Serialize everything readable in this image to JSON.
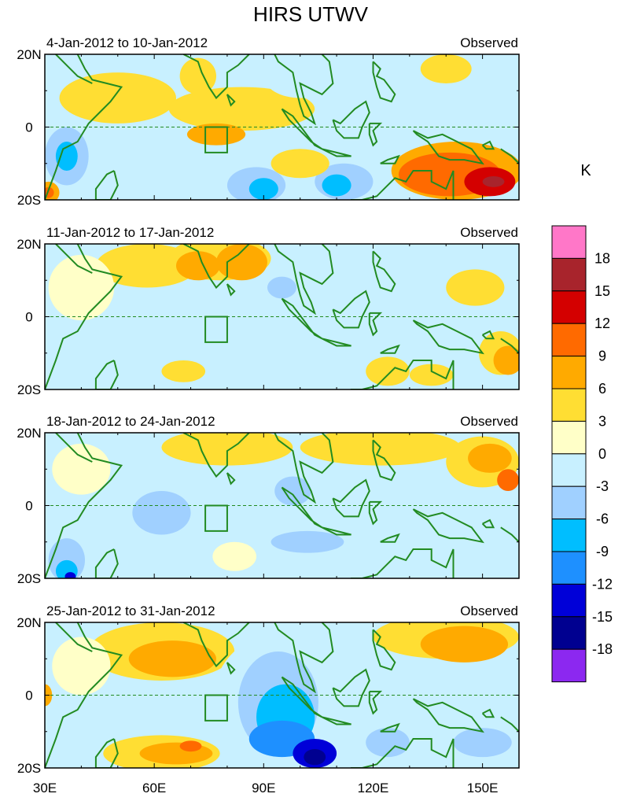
{
  "chart_data": {
    "type": "heatmap",
    "title": "HIRS UTWV",
    "units": "K",
    "x_ticks": [
      "30E",
      "60E",
      "90E",
      "120E",
      "150E"
    ],
    "x_tick_values": [
      30,
      60,
      90,
      120,
      150
    ],
    "y_ticks": [
      "20N",
      "0",
      "20S"
    ],
    "y_tick_values": [
      20,
      0,
      -20
    ],
    "xlim": [
      30,
      160
    ],
    "ylim": [
      -20,
      20
    ],
    "box_region": {
      "lon": [
        74,
        80
      ],
      "lat": [
        -7,
        0
      ]
    },
    "colorbar": {
      "levels": [
        "18",
        "15",
        "12",
        "9",
        "6",
        "3",
        "0",
        "-3",
        "-6",
        "-9",
        "-12",
        "-15",
        "-18"
      ],
      "colors": [
        "#ff77c8",
        "#a8242c",
        "#d40000",
        "#ff6a00",
        "#ffaa00",
        "#ffde33",
        "#ffffc8",
        "#c8f0ff",
        "#a0d0ff",
        "#00beff",
        "#1e90ff",
        "#0000d8",
        "#000090",
        "#8c28f0"
      ]
    },
    "panels": [
      {
        "period": "4-Jan-2012 to 10-Jan-2012",
        "label": "Observed",
        "blobs": [
          {
            "lon": 50,
            "lat": 8,
            "rx": 16,
            "ry": 7,
            "v": 3
          },
          {
            "lon": 84,
            "lat": 5,
            "rx": 20,
            "ry": 6,
            "v": 3
          },
          {
            "lon": 77,
            "lat": -2,
            "rx": 8,
            "ry": 3,
            "v": 6
          },
          {
            "lon": 72,
            "lat": 14,
            "rx": 5,
            "ry": 5,
            "v": 3
          },
          {
            "lon": 100,
            "lat": 14,
            "rx": 10,
            "ry": 6,
            "v": -3
          },
          {
            "lon": 125,
            "lat": 10,
            "rx": 10,
            "ry": 8,
            "v": -3
          },
          {
            "lon": 147,
            "lat": 8,
            "rx": 8,
            "ry": 6,
            "v": -3
          },
          {
            "lon": 140,
            "lat": 16,
            "rx": 7,
            "ry": 4,
            "v": 3
          },
          {
            "lon": 36,
            "lat": -8,
            "rx": 6,
            "ry": 8,
            "v": -6
          },
          {
            "lon": 36,
            "lat": -8,
            "rx": 3,
            "ry": 4,
            "v": -9
          },
          {
            "lon": 31,
            "lat": -18,
            "rx": 3,
            "ry": 3,
            "v": 6
          },
          {
            "lon": 31,
            "lat": -18,
            "rx": 1.5,
            "ry": 1.5,
            "v": 9
          },
          {
            "lon": 88,
            "lat": -16,
            "rx": 8,
            "ry": 5,
            "v": -6
          },
          {
            "lon": 90,
            "lat": -17,
            "rx": 4,
            "ry": 3,
            "v": -9
          },
          {
            "lon": 112,
            "lat": -15,
            "rx": 8,
            "ry": 5,
            "v": -6
          },
          {
            "lon": 110,
            "lat": -16,
            "rx": 4,
            "ry": 3,
            "v": -9
          },
          {
            "lon": 100,
            "lat": -10,
            "rx": 8,
            "ry": 4,
            "v": 3
          },
          {
            "lon": 143,
            "lat": -12,
            "rx": 18,
            "ry": 8,
            "v": 6
          },
          {
            "lon": 141,
            "lat": -13,
            "rx": 14,
            "ry": 6,
            "v": 9
          },
          {
            "lon": 152,
            "lat": -15,
            "rx": 7,
            "ry": 4,
            "v": 12
          },
          {
            "lon": 153,
            "lat": -15,
            "rx": 3,
            "ry": 1.5,
            "v": 15
          }
        ]
      },
      {
        "period": "11-Jan-2012 to 17-Jan-2012",
        "label": "Observed",
        "blobs": [
          {
            "lon": 58,
            "lat": 14,
            "rx": 14,
            "ry": 6,
            "v": 3
          },
          {
            "lon": 78,
            "lat": 16,
            "rx": 14,
            "ry": 6,
            "v": 3
          },
          {
            "lon": 72,
            "lat": 14,
            "rx": 6,
            "ry": 4,
            "v": 6
          },
          {
            "lon": 84,
            "lat": 15,
            "rx": 7,
            "ry": 5,
            "v": 6
          },
          {
            "lon": 40,
            "lat": 8,
            "rx": 9,
            "ry": 9,
            "v": 0
          },
          {
            "lon": 62,
            "lat": 0,
            "rx": 14,
            "ry": 6,
            "v": -3
          },
          {
            "lon": 92,
            "lat": 6,
            "rx": 6,
            "ry": 4,
            "v": -3
          },
          {
            "lon": 95,
            "lat": 8,
            "rx": 4,
            "ry": 3,
            "v": -6
          },
          {
            "lon": 105,
            "lat": 14,
            "rx": 6,
            "ry": 4,
            "v": -3
          },
          {
            "lon": 130,
            "lat": 8,
            "rx": 9,
            "ry": 6,
            "v": -3
          },
          {
            "lon": 148,
            "lat": 8,
            "rx": 8,
            "ry": 5,
            "v": 3
          },
          {
            "lon": 112,
            "lat": -8,
            "rx": 6,
            "ry": 4,
            "v": -3
          },
          {
            "lon": 68,
            "lat": -15,
            "rx": 6,
            "ry": 3,
            "v": 3
          },
          {
            "lon": 124,
            "lat": -15,
            "rx": 6,
            "ry": 4,
            "v": 3
          },
          {
            "lon": 136,
            "lat": -16,
            "rx": 6,
            "ry": 3,
            "v": 3
          },
          {
            "lon": 155,
            "lat": -10,
            "rx": 6,
            "ry": 6,
            "v": 3
          },
          {
            "lon": 157,
            "lat": -12,
            "rx": 4,
            "ry": 4,
            "v": 6
          },
          {
            "lon": 90,
            "lat": -14,
            "rx": 8,
            "ry": 3,
            "v": -3
          }
        ]
      },
      {
        "period": "18-Jan-2012 to 24-Jan-2012",
        "label": "Observed",
        "blobs": [
          {
            "lon": 80,
            "lat": 16,
            "rx": 18,
            "ry": 5,
            "v": 3
          },
          {
            "lon": 122,
            "lat": 16,
            "rx": 22,
            "ry": 5,
            "v": 3
          },
          {
            "lon": 150,
            "lat": 12,
            "rx": 10,
            "ry": 7,
            "v": 3
          },
          {
            "lon": 152,
            "lat": 13,
            "rx": 6,
            "ry": 4,
            "v": 6
          },
          {
            "lon": 157,
            "lat": 7,
            "rx": 3,
            "ry": 3,
            "v": 9
          },
          {
            "lon": 40,
            "lat": 10,
            "rx": 8,
            "ry": 7,
            "v": 0
          },
          {
            "lon": 58,
            "lat": 2,
            "rx": 12,
            "ry": 8,
            "v": -3
          },
          {
            "lon": 62,
            "lat": -2,
            "rx": 8,
            "ry": 6,
            "v": -6
          },
          {
            "lon": 104,
            "lat": 6,
            "rx": 10,
            "ry": 6,
            "v": -3
          },
          {
            "lon": 98,
            "lat": 4,
            "rx": 5,
            "ry": 4,
            "v": -6
          },
          {
            "lon": 100,
            "lat": -12,
            "rx": 22,
            "ry": 6,
            "v": -3
          },
          {
            "lon": 102,
            "lat": -10,
            "rx": 10,
            "ry": 3,
            "v": -6
          },
          {
            "lon": 128,
            "lat": -16,
            "rx": 14,
            "ry": 4,
            "v": -3
          },
          {
            "lon": 36,
            "lat": -15,
            "rx": 5,
            "ry": 6,
            "v": -6
          },
          {
            "lon": 36,
            "lat": -18,
            "rx": 3,
            "ry": 3,
            "v": -9
          },
          {
            "lon": 37,
            "lat": -19.5,
            "rx": 1.5,
            "ry": 1.2,
            "v": -15
          },
          {
            "lon": 82,
            "lat": -14,
            "rx": 6,
            "ry": 4,
            "v": 0
          }
        ]
      },
      {
        "period": "25-Jan-2012 to 31-Jan-2012",
        "label": "Observed",
        "blobs": [
          {
            "lon": 62,
            "lat": 12,
            "rx": 20,
            "ry": 8,
            "v": 3
          },
          {
            "lon": 65,
            "lat": 10,
            "rx": 12,
            "ry": 5,
            "v": 6
          },
          {
            "lon": 140,
            "lat": 16,
            "rx": 20,
            "ry": 6,
            "v": 3
          },
          {
            "lon": 145,
            "lat": 14,
            "rx": 12,
            "ry": 5,
            "v": 6
          },
          {
            "lon": 40,
            "lat": 8,
            "rx": 8,
            "ry": 8,
            "v": 0
          },
          {
            "lon": 30,
            "lat": 0,
            "rx": 2,
            "ry": 3,
            "v": 6
          },
          {
            "lon": 92,
            "lat": -2,
            "rx": 16,
            "ry": 18,
            "v": -3
          },
          {
            "lon": 94,
            "lat": -2,
            "rx": 11,
            "ry": 14,
            "v": -6
          },
          {
            "lon": 96,
            "lat": -6,
            "rx": 8,
            "ry": 9,
            "v": -9
          },
          {
            "lon": 95,
            "lat": -12,
            "rx": 9,
            "ry": 5,
            "v": -12
          },
          {
            "lon": 104,
            "lat": -16,
            "rx": 6,
            "ry": 4,
            "v": -15
          },
          {
            "lon": 104,
            "lat": -17,
            "rx": 3,
            "ry": 2.2,
            "v": -18
          },
          {
            "lon": 126,
            "lat": -14,
            "rx": 12,
            "ry": 6,
            "v": -3
          },
          {
            "lon": 124,
            "lat": -13,
            "rx": 6,
            "ry": 4,
            "v": -6
          },
          {
            "lon": 148,
            "lat": -12,
            "rx": 12,
            "ry": 6,
            "v": -3
          },
          {
            "lon": 150,
            "lat": -13,
            "rx": 8,
            "ry": 4,
            "v": -6
          },
          {
            "lon": 62,
            "lat": -16,
            "rx": 16,
            "ry": 5,
            "v": 3
          },
          {
            "lon": 66,
            "lat": -16,
            "rx": 10,
            "ry": 3,
            "v": 6
          },
          {
            "lon": 70,
            "lat": -14,
            "rx": 3,
            "ry": 1.5,
            "v": 9
          },
          {
            "lon": 40,
            "lat": -10,
            "rx": 8,
            "ry": 6,
            "v": -3
          }
        ]
      }
    ]
  }
}
